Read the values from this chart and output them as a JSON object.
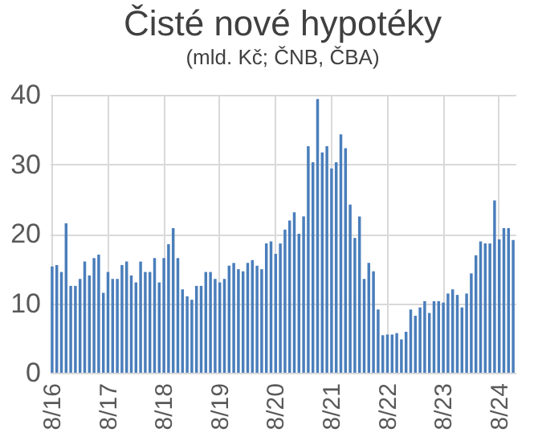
{
  "chart_data": {
    "type": "bar",
    "title": "Čisté nové hypotéky",
    "subtitle": "(mld. Kč; ČNB, ČBA)",
    "categories": [
      "8/16",
      null,
      null,
      null,
      null,
      null,
      null,
      null,
      null,
      null,
      null,
      null,
      "8/17",
      null,
      null,
      null,
      null,
      null,
      null,
      null,
      null,
      null,
      null,
      null,
      "8/18",
      null,
      null,
      null,
      null,
      null,
      null,
      null,
      null,
      null,
      null,
      null,
      "8/19",
      null,
      null,
      null,
      null,
      null,
      null,
      null,
      null,
      null,
      null,
      null,
      "8/20",
      null,
      null,
      null,
      null,
      null,
      null,
      null,
      null,
      null,
      null,
      null,
      "8/21",
      null,
      null,
      null,
      null,
      null,
      null,
      null,
      null,
      null,
      null,
      null,
      "8/22",
      null,
      null,
      null,
      null,
      null,
      null,
      null,
      null,
      null,
      null,
      null,
      "8/23",
      null,
      null,
      null,
      null,
      null,
      null,
      null,
      null,
      null,
      null,
      null,
      "8/24",
      null,
      null,
      null
    ],
    "values": [
      15.3,
      15.5,
      14.5,
      21.5,
      12.5,
      12.5,
      13.5,
      16,
      14,
      16.5,
      17,
      11.5,
      14.5,
      13.5,
      13.5,
      15.5,
      16,
      14,
      13,
      16,
      14.5,
      14.5,
      16.5,
      13,
      16.5,
      18.5,
      20.8,
      16.5,
      12,
      11,
      10.5,
      12.5,
      12.5,
      14.5,
      14.5,
      13.5,
      13,
      13.5,
      15.4,
      15.8,
      14.9,
      14.6,
      15.8,
      16.2,
      15.4,
      14.9,
      18.6,
      18.9,
      17.1,
      18.6,
      20.6,
      21.9,
      23.1,
      20,
      22.5,
      32.6,
      30.3,
      39.4,
      31.7,
      32.6,
      29.4,
      30.3,
      34.3,
      32.3,
      24.2,
      19.4,
      22.5,
      13.5,
      15.8,
      14.6,
      9.1,
      5.4,
      5.5,
      5.5,
      5.7,
      4.8,
      5.9,
      9.1,
      8.2,
      9.4,
      10.3,
      8.6,
      10.3,
      10.3,
      10.1,
      11.4,
      12,
      11.2,
      9.4,
      11.4,
      14.3,
      16.9,
      18.9,
      18.6,
      18.6,
      24.8,
      19.2,
      20.8,
      20.8,
      19.1
    ],
    "color": "#4a7ebb",
    "ylim": [
      0,
      40
    ],
    "yticks": [
      0,
      10,
      20,
      30,
      40
    ],
    "grid": true
  }
}
